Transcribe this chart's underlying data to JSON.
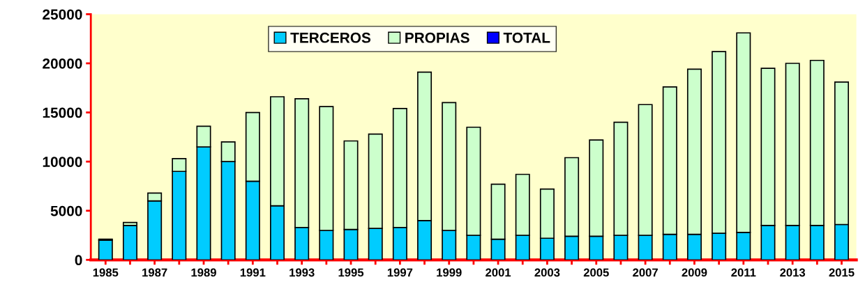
{
  "chart_data": {
    "type": "bar",
    "stacked": true,
    "categories": [
      "1985",
      null,
      "1987",
      null,
      "1989",
      null,
      "1991",
      null,
      "1993",
      null,
      "1995",
      null,
      "1997",
      null,
      "1999",
      null,
      "2001",
      null,
      "2003",
      null,
      "2005",
      null,
      "2007",
      null,
      "2009",
      null,
      "2011",
      null,
      "2013",
      null,
      "2015"
    ],
    "series": [
      {
        "name": "TERCEROS",
        "color": "#00ccff",
        "values": [
          2000,
          3500,
          6000,
          9000,
          11500,
          10000,
          8000,
          5500,
          3300,
          3000,
          3100,
          3200,
          3300,
          4000,
          3000,
          2500,
          2100,
          2500,
          2200,
          2400,
          2400,
          2500,
          2500,
          2600,
          2600,
          2700,
          2800,
          3500,
          3500,
          3500,
          3600
        ]
      },
      {
        "name": "PROPIAS",
        "color": "#ccffcc",
        "values": [
          100,
          300,
          800,
          1300,
          2100,
          2000,
          7000,
          11100,
          13100,
          12600,
          9000,
          9600,
          12100,
          15100,
          13000,
          11000,
          5600,
          6200,
          5000,
          8000,
          9800,
          11500,
          13300,
          15000,
          16800,
          18500,
          20300,
          16000,
          16500,
          16800,
          14500
        ]
      },
      {
        "name": "TOTAL",
        "color": "#0000ff",
        "values": [
          null,
          null,
          null,
          null,
          null,
          null,
          null,
          null,
          null,
          null,
          null,
          null,
          null,
          null,
          null,
          null,
          null,
          null,
          null,
          null,
          null,
          null,
          null,
          null,
          null,
          null,
          null,
          null,
          null,
          null,
          null
        ]
      }
    ],
    "ylim": [
      0,
      25000
    ],
    "yticks": [
      0,
      5000,
      10000,
      15000,
      20000,
      25000
    ],
    "grid": false,
    "legend": "top"
  }
}
